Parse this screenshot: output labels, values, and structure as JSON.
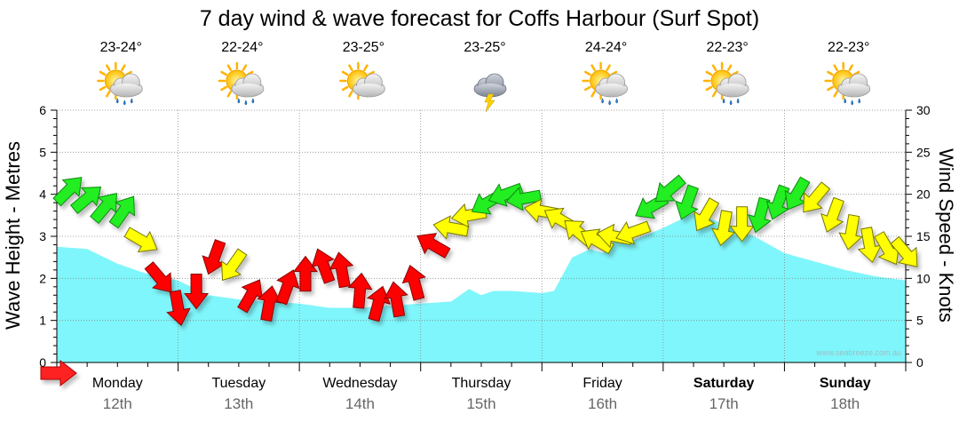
{
  "title": "7 day wind & wave forecast for Coffs Harbour (Surf Spot)",
  "watermark": "www.seabreeze.com.au",
  "colors": {
    "wave_fill": "#7ff6fb",
    "wind_green": "#22ee22",
    "wind_yellow": "#ffff00",
    "wind_red": "#ff0000",
    "grid": "#888888",
    "date_text": "#666666"
  },
  "days": [
    {
      "name": "Monday",
      "date": "12th",
      "temp": "23-24°",
      "icon": "sun-cloud-rain-icon",
      "weekend": false
    },
    {
      "name": "Tuesday",
      "date": "13th",
      "temp": "22-24°",
      "icon": "sun-cloud-rain-icon",
      "weekend": false
    },
    {
      "name": "Wednesday",
      "date": "14th",
      "temp": "23-25°",
      "icon": "sun-cloud-icon",
      "weekend": false
    },
    {
      "name": "Thursday",
      "date": "15th",
      "temp": "23-25°",
      "icon": "storm-cloud-icon",
      "weekend": false
    },
    {
      "name": "Friday",
      "date": "16th",
      "temp": "24-24°",
      "icon": "sun-cloud-rain-icon",
      "weekend": false
    },
    {
      "name": "Saturday",
      "date": "17th",
      "temp": "22-23°",
      "icon": "sun-cloud-rain-icon",
      "weekend": true
    },
    {
      "name": "Sunday",
      "date": "18th",
      "temp": "22-23°",
      "icon": "sun-cloud-rain-icon",
      "weekend": true
    }
  ],
  "chart_data": {
    "type": "area",
    "ylabel": "Wave Height - Metres",
    "y2label": "Wind Speed - Knots",
    "ylim": [
      0,
      6
    ],
    "y2lim": [
      0,
      30
    ],
    "yticks": [
      0,
      1,
      2,
      3,
      4,
      5,
      6
    ],
    "y2ticks": [
      0,
      5,
      10,
      15,
      20,
      25,
      30
    ],
    "x_unit": "days from Monday 12th 00:00",
    "xlim": [
      0,
      7
    ],
    "grid": true,
    "wave_height": {
      "x": [
        0,
        0.25,
        0.5,
        0.75,
        1.0,
        1.25,
        1.5,
        1.75,
        2.0,
        2.25,
        2.5,
        2.75,
        3.0,
        3.25,
        3.4,
        3.5,
        3.6,
        3.75,
        4.0,
        4.1,
        4.25,
        4.4,
        4.5,
        4.6,
        4.75,
        5.0,
        5.25,
        5.5,
        5.75,
        6.0,
        6.25,
        6.5,
        6.75,
        7.0
      ],
      "y": [
        2.75,
        2.7,
        2.35,
        2.1,
        1.95,
        1.6,
        1.5,
        1.45,
        1.4,
        1.3,
        1.3,
        1.35,
        1.4,
        1.45,
        1.75,
        1.6,
        1.7,
        1.7,
        1.65,
        1.7,
        2.5,
        2.7,
        2.6,
        2.9,
        2.9,
        3.2,
        3.55,
        3.3,
        3.0,
        2.6,
        2.4,
        2.2,
        2.05,
        1.95
      ]
    },
    "wind_speed": {
      "x": [
        0.1,
        0.25,
        0.4,
        0.55,
        0.7,
        0.85,
        1.0,
        1.15,
        1.3,
        1.45,
        1.6,
        1.75,
        1.9,
        2.05,
        2.2,
        2.35,
        2.5,
        2.65,
        2.8,
        2.95,
        3.1,
        3.25,
        3.4,
        3.55,
        3.7,
        3.85,
        4.0,
        4.15,
        4.3,
        4.45,
        4.6,
        4.75,
        4.9,
        5.05,
        5.2,
        5.35,
        5.5,
        5.65,
        5.8,
        5.95,
        6.1,
        6.25,
        6.4,
        6.55,
        6.7,
        6.85,
        7.0
      ],
      "knots": [
        20.5,
        19.5,
        18.5,
        18.0,
        14.5,
        10.0,
        6.5,
        8.5,
        12.5,
        11.5,
        8.0,
        7.0,
        9.0,
        10.5,
        11.5,
        11.0,
        8.5,
        7.0,
        7.5,
        9.5,
        14.0,
        16.0,
        17.5,
        19.0,
        20.0,
        19.5,
        18.0,
        17.0,
        15.5,
        14.5,
        15.0,
        15.5,
        18.5,
        20.5,
        19.0,
        17.5,
        16.0,
        16.5,
        17.5,
        19.0,
        20.0,
        19.5,
        17.5,
        15.5,
        14.0,
        13.5,
        13.0
      ],
      "color_class": [
        "green",
        "green",
        "green",
        "green",
        "yellow",
        "red",
        "red",
        "red",
        "red",
        "yellow",
        "red",
        "red",
        "red",
        "red",
        "red",
        "red",
        "red",
        "red",
        "red",
        "red",
        "red",
        "yellow",
        "yellow",
        "green",
        "green",
        "green",
        "yellow",
        "yellow",
        "yellow",
        "yellow",
        "yellow",
        "yellow",
        "green",
        "green",
        "green",
        "yellow",
        "yellow",
        "yellow",
        "green",
        "green",
        "green",
        "yellow",
        "yellow",
        "yellow",
        "yellow",
        "yellow",
        "yellow"
      ],
      "direction_to_deg": [
        45,
        50,
        40,
        35,
        120,
        140,
        170,
        180,
        200,
        215,
        30,
        10,
        20,
        0,
        340,
        350,
        5,
        15,
        350,
        345,
        300,
        280,
        260,
        240,
        250,
        260,
        280,
        300,
        310,
        300,
        280,
        250,
        240,
        230,
        200,
        210,
        190,
        180,
        195,
        200,
        210,
        220,
        200,
        190,
        170,
        150,
        140
      ]
    }
  }
}
